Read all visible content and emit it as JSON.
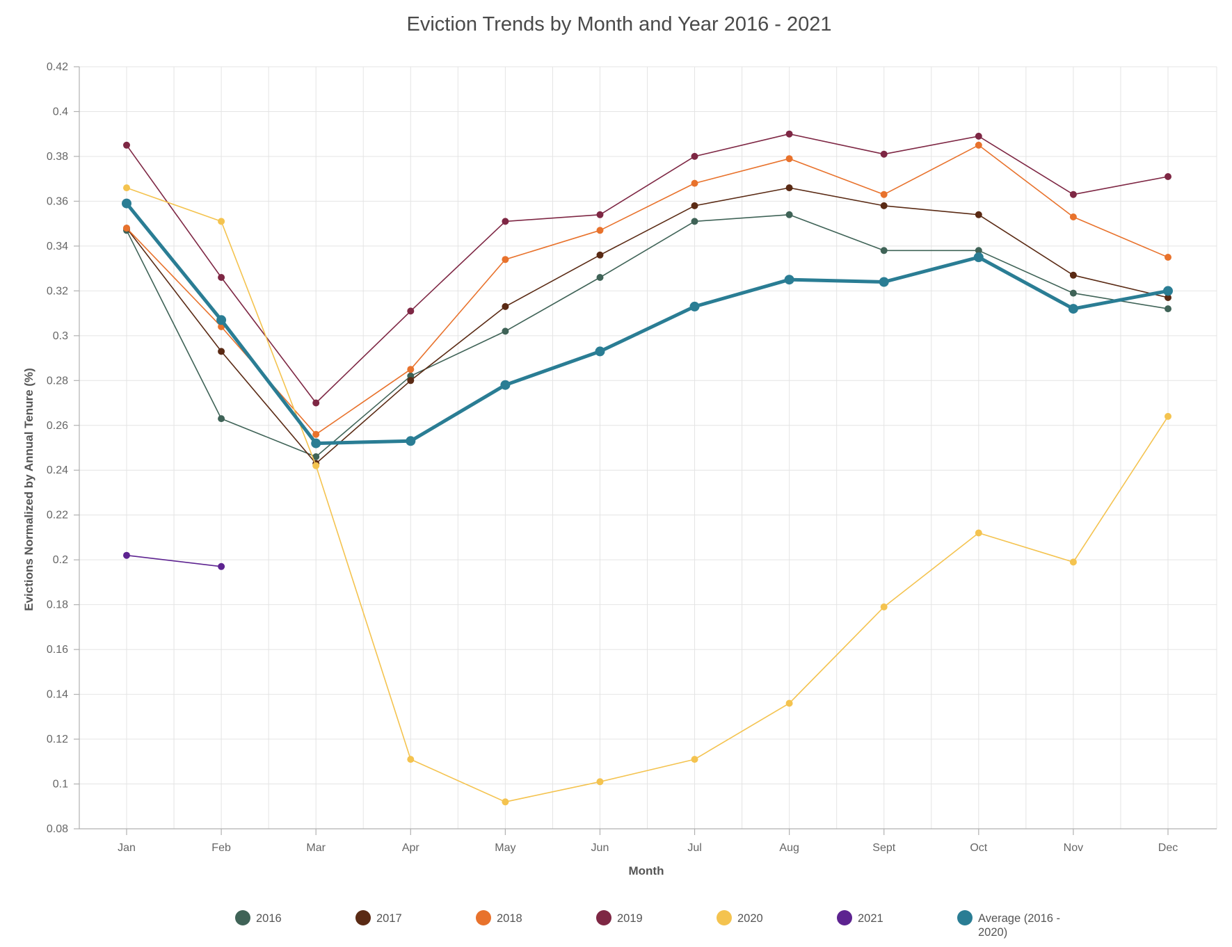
{
  "chart_data": {
    "type": "line",
    "title": "Eviction Trends by Month and Year 2016 - 2021",
    "xlabel": "Month",
    "ylabel": "Evictions Normalized by Annual Tenure (%)",
    "categories": [
      "Jan",
      "Feb",
      "Mar",
      "Apr",
      "May",
      "Jun",
      "Jul",
      "Aug",
      "Sept",
      "Oct",
      "Nov",
      "Dec"
    ],
    "ylim": [
      0.08,
      0.42
    ],
    "yticks": [
      0.08,
      0.1,
      0.12,
      0.14,
      0.16,
      0.18,
      0.2,
      0.22,
      0.24,
      0.26,
      0.28,
      0.3,
      0.32,
      0.34,
      0.36,
      0.38,
      0.4,
      0.42
    ],
    "ytick_labels": [
      "0.08",
      "0.1",
      "0.12",
      "0.14",
      "0.16",
      "0.18",
      "0.2",
      "0.22",
      "0.24",
      "0.26",
      "0.28",
      "0.3",
      "0.32",
      "0.34",
      "0.36",
      "0.38",
      "0.4",
      "0.42"
    ],
    "grid": true,
    "legend_position": "bottom",
    "series": [
      {
        "name": "2016",
        "color": "#3f6357",
        "emphasis": false,
        "values": [
          0.347,
          0.263,
          0.246,
          0.282,
          0.302,
          0.326,
          0.351,
          0.354,
          0.338,
          0.338,
          0.319,
          0.312
        ]
      },
      {
        "name": "2017",
        "color": "#5a2a14",
        "emphasis": false,
        "values": [
          0.348,
          0.293,
          0.243,
          0.28,
          0.313,
          0.336,
          0.358,
          0.366,
          0.358,
          0.354,
          0.327,
          0.317
        ]
      },
      {
        "name": "2018",
        "color": "#e8722c",
        "emphasis": false,
        "values": [
          0.348,
          0.304,
          0.256,
          0.285,
          0.334,
          0.347,
          0.368,
          0.379,
          0.363,
          0.385,
          0.353,
          0.335
        ]
      },
      {
        "name": "2019",
        "color": "#7e2744",
        "emphasis": false,
        "values": [
          0.385,
          0.326,
          0.27,
          0.311,
          0.351,
          0.354,
          0.38,
          0.39,
          0.381,
          0.389,
          0.363,
          0.371
        ]
      },
      {
        "name": "2020",
        "color": "#f4c34f",
        "emphasis": false,
        "values": [
          0.366,
          0.351,
          0.242,
          0.111,
          0.092,
          0.101,
          0.111,
          0.136,
          0.179,
          0.212,
          0.199,
          0.264
        ]
      },
      {
        "name": "2021",
        "color": "#5d2390",
        "emphasis": false,
        "values": [
          0.202,
          0.197,
          null,
          null,
          null,
          null,
          null,
          null,
          null,
          null,
          null,
          null
        ]
      },
      {
        "name": "Average (2016 - 2020)",
        "name_lines": [
          "Average (2016 -",
          "2020)"
        ],
        "color": "#2a7d94",
        "emphasis": true,
        "values": [
          0.359,
          0.307,
          0.252,
          0.253,
          0.278,
          0.293,
          0.313,
          0.325,
          0.324,
          0.335,
          0.312,
          0.32
        ]
      }
    ]
  }
}
